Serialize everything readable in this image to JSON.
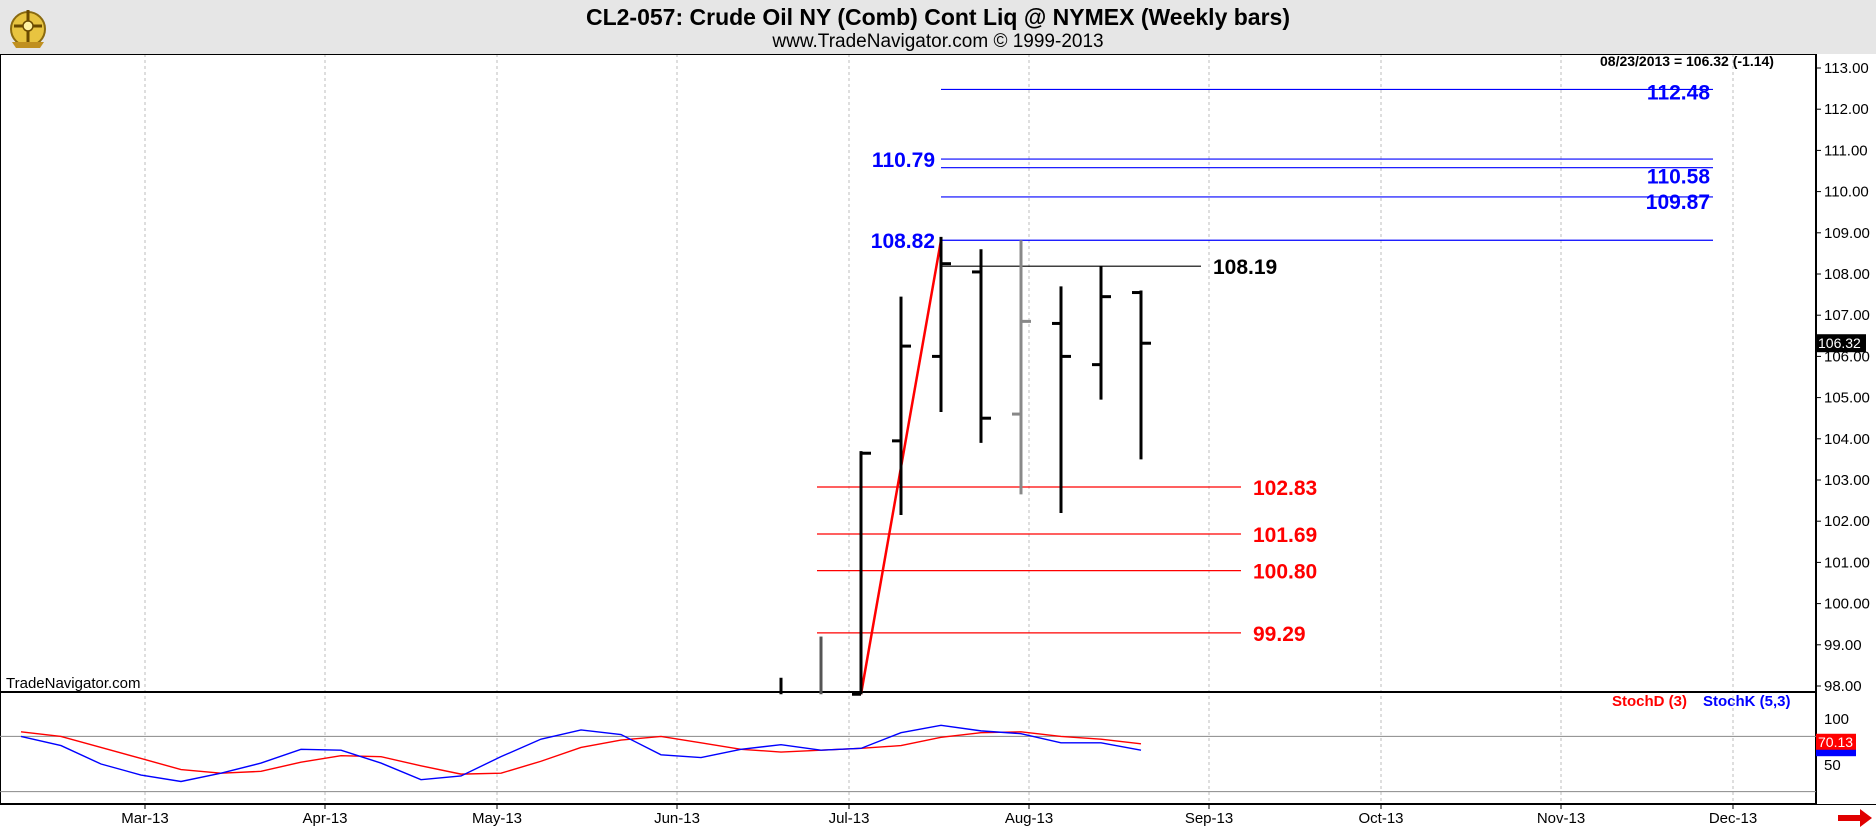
{
  "chart_data": [
    {
      "type": "ohlc",
      "title": "CL2-057:  Crude Oil NY (Comb) Cont Liq @ NYMEX  (Weekly bars)",
      "subtitle": "www.TradeNavigator.com © 1999-2013",
      "watermark": "TradeNavigator.com",
      "readout": "08/23/2013 = 106.32 (-1.14)",
      "last_price_label": "106.32",
      "ylim": [
        97.8,
        113.5
      ],
      "y_ticks": [
        "98.00",
        "99.00",
        "100.00",
        "101.00",
        "102.00",
        "103.00",
        "104.00",
        "105.00",
        "106.00",
        "107.00",
        "108.00",
        "109.00",
        "110.00",
        "111.00",
        "112.00",
        "113.00"
      ],
      "x_ticks": [
        {
          "label": "Mar-13",
          "week": -17.9
        },
        {
          "label": "Apr-13",
          "week": -13.4
        },
        {
          "label": "May-13",
          "week": -9.1
        },
        {
          "label": "Jun-13",
          "week": -4.6
        },
        {
          "label": "Jul-13",
          "week": -0.3
        },
        {
          "label": "Aug-13",
          "week": 4.2
        },
        {
          "label": "Sep-13",
          "week": 8.7
        },
        {
          "label": "Oct-13",
          "week": 13.0
        },
        {
          "label": "Nov-13",
          "week": 17.5
        },
        {
          "label": "Dec-13",
          "week": 21.8
        }
      ],
      "bars": [
        {
          "week": -2,
          "open": null,
          "high": 98.2,
          "low": 97.8,
          "close": null,
          "color": "#000000"
        },
        {
          "week": -1,
          "open": null,
          "high": 99.2,
          "low": 97.8,
          "close": null,
          "color": "#555555"
        },
        {
          "week": 0,
          "open": 97.8,
          "high": 103.7,
          "low": 97.8,
          "close": 103.65,
          "color": "#000000"
        },
        {
          "week": 1,
          "open": 103.95,
          "high": 107.45,
          "low": 102.15,
          "close": 106.25,
          "color": "#000000"
        },
        {
          "week": 2,
          "open": 106.0,
          "high": 108.9,
          "low": 104.65,
          "close": 108.25,
          "color": "#000000"
        },
        {
          "week": 3,
          "open": 108.05,
          "high": 108.6,
          "low": 103.9,
          "close": 104.5,
          "color": "#000000"
        },
        {
          "week": 4,
          "open": 104.6,
          "high": 108.82,
          "low": 102.65,
          "close": 106.85,
          "color": "#888888"
        },
        {
          "week": 5,
          "open": 106.8,
          "high": 107.7,
          "low": 102.2,
          "close": 106.0,
          "color": "#000000"
        },
        {
          "week": 6,
          "open": 105.8,
          "high": 108.19,
          "low": 104.95,
          "close": 107.45,
          "color": "#000000"
        },
        {
          "week": 7,
          "open": 107.55,
          "high": 107.6,
          "low": 103.5,
          "close": 106.32,
          "color": "#000000"
        }
      ],
      "trend_line": {
        "from": {
          "week": 0,
          "price": 97.8
        },
        "to": {
          "week": 2,
          "price": 108.82
        },
        "color": "#ff0000"
      },
      "levels": [
        {
          "value": 112.48,
          "label": "112.48",
          "color": "#0000ff",
          "from_week": 2,
          "to_week": 21.3,
          "label_side": "right-end"
        },
        {
          "value": 110.79,
          "label": "110.79",
          "color": "#0000ff",
          "from_week": 2,
          "to_week": 21.3,
          "label_side": "left"
        },
        {
          "value": 110.58,
          "label": "110.58",
          "color": "#0000ff",
          "from_week": 2,
          "to_week": 21.3,
          "label_side": "right-end"
        },
        {
          "value": 109.87,
          "label": "109.87",
          "color": "#0000ff",
          "from_week": 2,
          "to_week": 21.3,
          "label_side": "right-end"
        },
        {
          "value": 108.82,
          "label": "108.82",
          "color": "#0000ff",
          "from_week": 2,
          "to_week": 21.3,
          "label_side": "left"
        },
        {
          "value": 108.19,
          "label": "108.19",
          "color": "#000000",
          "from_week": 2,
          "to_week": 8.5,
          "label_side": "after-line"
        },
        {
          "value": 102.83,
          "label": "102.83",
          "color": "#ff0000",
          "from_week": -1.1,
          "to_week": 9.5,
          "label_side": "after-line"
        },
        {
          "value": 101.69,
          "label": "101.69",
          "color": "#ff0000",
          "from_week": -1.1,
          "to_week": 9.5,
          "label_side": "after-line"
        },
        {
          "value": 100.8,
          "label": "100.80",
          "color": "#ff0000",
          "from_week": -1.1,
          "to_week": 9.5,
          "label_side": "after-line"
        },
        {
          "value": 99.29,
          "label": "99.29",
          "color": "#ff0000",
          "from_week": -1.1,
          "to_week": 9.5,
          "label_side": "after-line"
        }
      ]
    },
    {
      "type": "line",
      "legend": [
        {
          "label": "StochD (3)",
          "color": "#ff0000"
        },
        {
          "label": "StochK (5,3)",
          "color": "#0000ff"
        }
      ],
      "ylim": [
        25,
        100
      ],
      "y_ticks": [
        "100",
        "50"
      ],
      "reference_lines": [
        80,
        20
      ],
      "last_value_label": "70.13",
      "series": [
        {
          "name": "StochD (3)",
          "color": "#ff0000",
          "x": [
            -21,
            -20,
            -19,
            -18,
            -17,
            -16,
            -15,
            -14,
            -13,
            -12,
            -11,
            -10,
            -9,
            -8,
            -7,
            -6,
            -5,
            -4,
            -3,
            -2,
            -1,
            0,
            1,
            2,
            3,
            4,
            5,
            6,
            7
          ],
          "y": [
            85,
            80,
            68,
            56,
            44,
            40,
            42,
            52,
            59,
            58,
            48,
            39,
            40,
            53,
            68,
            76,
            80,
            73,
            66,
            63,
            65,
            67,
            70,
            79,
            84,
            85,
            80,
            77,
            72
          ]
        },
        {
          "name": "StochK (5,3)",
          "color": "#0000ff",
          "x": [
            -21,
            -20,
            -19,
            -18,
            -17,
            -16,
            -15,
            -14,
            -13,
            -12,
            -11,
            -10,
            -9,
            -8,
            -7,
            -6,
            -5,
            -4,
            -3,
            -2,
            -1,
            0,
            1,
            2,
            3,
            4,
            5,
            6,
            7
          ],
          "y": [
            80,
            70,
            50,
            38,
            31,
            40,
            51,
            66,
            65,
            51,
            33,
            37,
            58,
            77,
            87,
            82,
            60,
            57,
            66,
            71,
            65,
            67,
            84,
            92,
            86,
            83,
            73,
            73,
            65
          ]
        }
      ]
    }
  ]
}
